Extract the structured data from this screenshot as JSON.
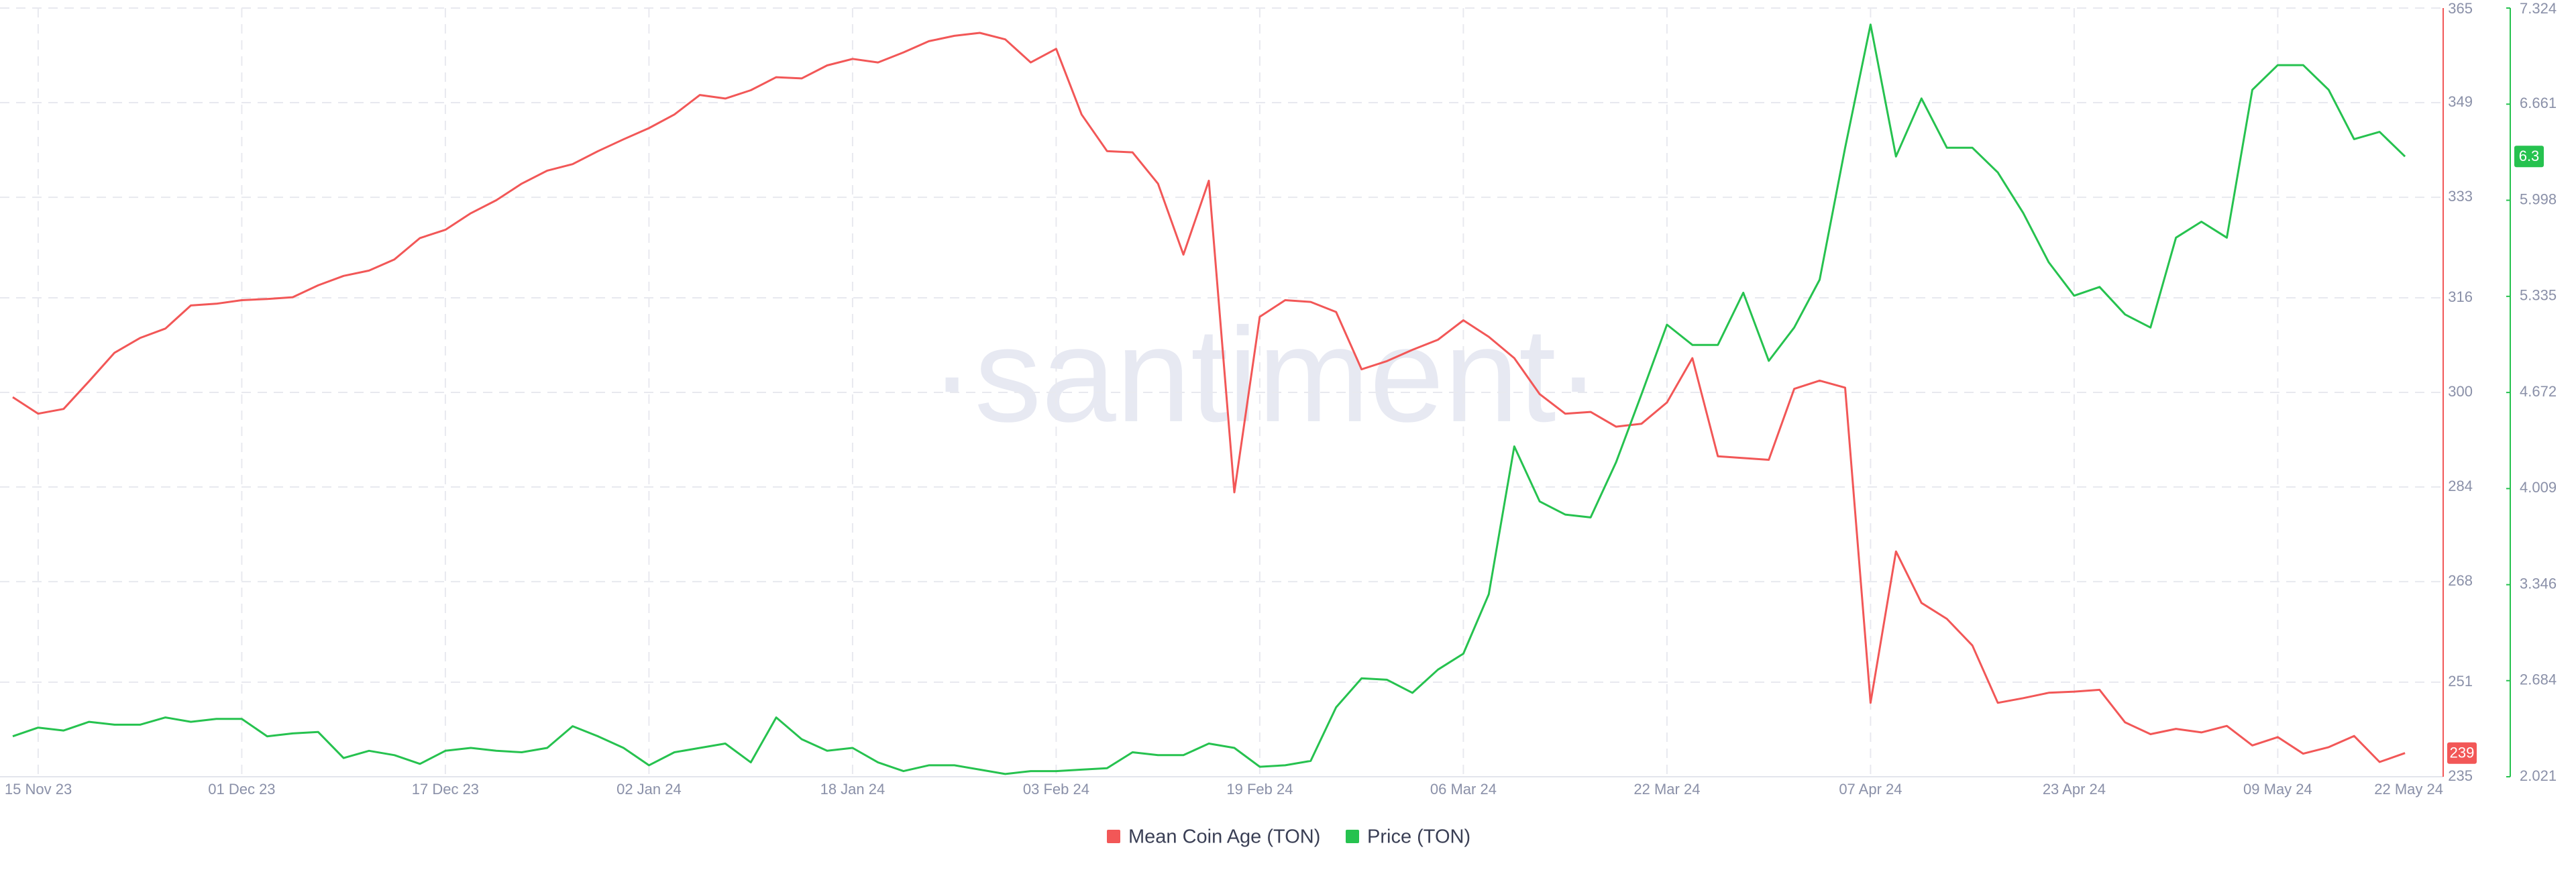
{
  "chart_data": {
    "type": "line",
    "watermark": "·santiment·",
    "x": [
      "2023-11-13",
      "2023-11-15",
      "2023-11-17",
      "2023-11-19",
      "2023-11-21",
      "2023-11-23",
      "2023-11-25",
      "2023-11-27",
      "2023-11-29",
      "2023-12-01",
      "2023-12-03",
      "2023-12-05",
      "2023-12-07",
      "2023-12-09",
      "2023-12-11",
      "2023-12-13",
      "2023-12-15",
      "2023-12-17",
      "2023-12-19",
      "2023-12-21",
      "2023-12-23",
      "2023-12-25",
      "2023-12-27",
      "2023-12-29",
      "2023-12-31",
      "2024-01-02",
      "2024-01-04",
      "2024-01-06",
      "2024-01-08",
      "2024-01-10",
      "2024-01-12",
      "2024-01-14",
      "2024-01-16",
      "2024-01-18",
      "2024-01-20",
      "2024-01-22",
      "2024-01-24",
      "2024-01-26",
      "2024-01-28",
      "2024-01-30",
      "2024-02-01",
      "2024-02-03",
      "2024-02-05",
      "2024-02-07",
      "2024-02-09",
      "2024-02-11",
      "2024-02-13",
      "2024-02-15",
      "2024-02-17",
      "2024-02-19",
      "2024-02-21",
      "2024-02-23",
      "2024-02-25",
      "2024-02-27",
      "2024-02-29",
      "2024-03-02",
      "2024-03-04",
      "2024-03-06",
      "2024-03-08",
      "2024-03-10",
      "2024-03-12",
      "2024-03-14",
      "2024-03-16",
      "2024-03-18",
      "2024-03-20",
      "2024-03-22",
      "2024-03-24",
      "2024-03-26",
      "2024-03-28",
      "2024-03-30",
      "2024-04-01",
      "2024-04-03",
      "2024-04-05",
      "2024-04-07",
      "2024-04-09",
      "2024-04-11",
      "2024-04-13",
      "2024-04-15",
      "2024-04-17",
      "2024-04-19",
      "2024-04-21",
      "2024-04-23",
      "2024-04-25",
      "2024-04-27",
      "2024-04-29",
      "2024-05-01",
      "2024-05-03",
      "2024-05-05",
      "2024-05-07",
      "2024-05-09",
      "2024-05-11",
      "2024-05-13",
      "2024-05-15",
      "2024-05-17",
      "2024-05-19"
    ],
    "xlim": [
      "2023-11-12",
      "2024-05-22"
    ],
    "xticks": [
      {
        "value": "2023-11-15",
        "label": "15 Nov 23"
      },
      {
        "value": "2023-12-01",
        "label": "01 Dec 23"
      },
      {
        "value": "2023-12-17",
        "label": "17 Dec 23"
      },
      {
        "value": "2024-01-02",
        "label": "02 Jan 24"
      },
      {
        "value": "2024-01-18",
        "label": "18 Jan 24"
      },
      {
        "value": "2024-02-03",
        "label": "03 Feb 24"
      },
      {
        "value": "2024-02-19",
        "label": "19 Feb 24"
      },
      {
        "value": "2024-03-06",
        "label": "06 Mar 24"
      },
      {
        "value": "2024-03-22",
        "label": "22 Mar 24"
      },
      {
        "value": "2024-04-07",
        "label": "07 Apr 24"
      },
      {
        "value": "2024-04-23",
        "label": "23 Apr 24"
      },
      {
        "value": "2024-05-09",
        "label": "09 May 24"
      },
      {
        "value": "2024-05-22",
        "label": "22 May 24"
      }
    ],
    "ylim": [
      235,
      365
    ],
    "yticks": [
      235,
      251,
      268,
      284,
      300,
      316,
      333,
      349,
      365
    ],
    "y2lim": [
      2.021,
      7.324
    ],
    "y2ticks": [
      2.021,
      2.684,
      3.346,
      4.009,
      4.672,
      5.335,
      5.998,
      6.661,
      7.324
    ],
    "grid": true,
    "legend": "bottom",
    "series": [
      {
        "name": "Mean Coin Age (TON)",
        "color": "#f25757",
        "axis": "y",
        "last_label": "239",
        "values": [
          299.2,
          296.4,
          297.2,
          301.9,
          306.7,
          309.2,
          310.8,
          314.7,
          315.0,
          315.6,
          315.8,
          316.1,
          318.1,
          319.7,
          320.6,
          322.5,
          326.1,
          327.5,
          330.3,
          332.5,
          335.3,
          337.5,
          338.6,
          340.8,
          342.8,
          344.7,
          347.0,
          350.3,
          349.7,
          351.1,
          353.3,
          353.1,
          355.3,
          356.4,
          355.8,
          357.5,
          359.4,
          360.3,
          360.8,
          359.7,
          355.8,
          358.1,
          347.0,
          340.8,
          340.6,
          335.3,
          323.3,
          335.8,
          283.1,
          312.8,
          315.6,
          315.3,
          313.6,
          303.9,
          305.3,
          307.2,
          308.9,
          312.2,
          309.4,
          305.8,
          299.7,
          296.4,
          296.7,
          294.2,
          294.7,
          298.3,
          305.8,
          289.2,
          288.9,
          288.6,
          300.6,
          302.0,
          300.8,
          247.5,
          273.1,
          264.4,
          261.7,
          257.2,
          247.5,
          248.3,
          249.2,
          249.4,
          249.7,
          244.2,
          242.2,
          243.1,
          242.5,
          243.6,
          240.3,
          241.7,
          238.9,
          240.0,
          241.9,
          237.5,
          239.0
        ]
      },
      {
        "name": "Price (TON)",
        "color": "#26c24f",
        "axis": "y2",
        "last_label": "6.3",
        "values": [
          2.3,
          2.36,
          2.34,
          2.4,
          2.38,
          2.38,
          2.43,
          2.4,
          2.42,
          2.42,
          2.3,
          2.32,
          2.33,
          2.15,
          2.2,
          2.17,
          2.11,
          2.2,
          2.22,
          2.2,
          2.19,
          2.22,
          2.37,
          2.3,
          2.22,
          2.1,
          2.19,
          2.22,
          2.25,
          2.12,
          2.43,
          2.28,
          2.2,
          2.22,
          2.12,
          2.06,
          2.1,
          2.1,
          2.07,
          2.04,
          2.06,
          2.06,
          2.07,
          2.08,
          2.19,
          2.17,
          2.17,
          2.25,
          2.22,
          2.09,
          2.1,
          2.13,
          2.5,
          2.7,
          2.69,
          2.6,
          2.76,
          2.87,
          3.28,
          4.3,
          3.92,
          3.83,
          3.81,
          4.19,
          4.66,
          5.14,
          5.0,
          5.0,
          5.36,
          4.89,
          5.12,
          5.45,
          6.36,
          7.21,
          6.3,
          6.7,
          6.36,
          6.36,
          6.19,
          5.91,
          5.57,
          5.34,
          5.4,
          5.21,
          5.12,
          5.74,
          5.85,
          5.74,
          6.76,
          6.93,
          6.93,
          6.76,
          6.42,
          6.47,
          6.3
        ]
      }
    ]
  }
}
